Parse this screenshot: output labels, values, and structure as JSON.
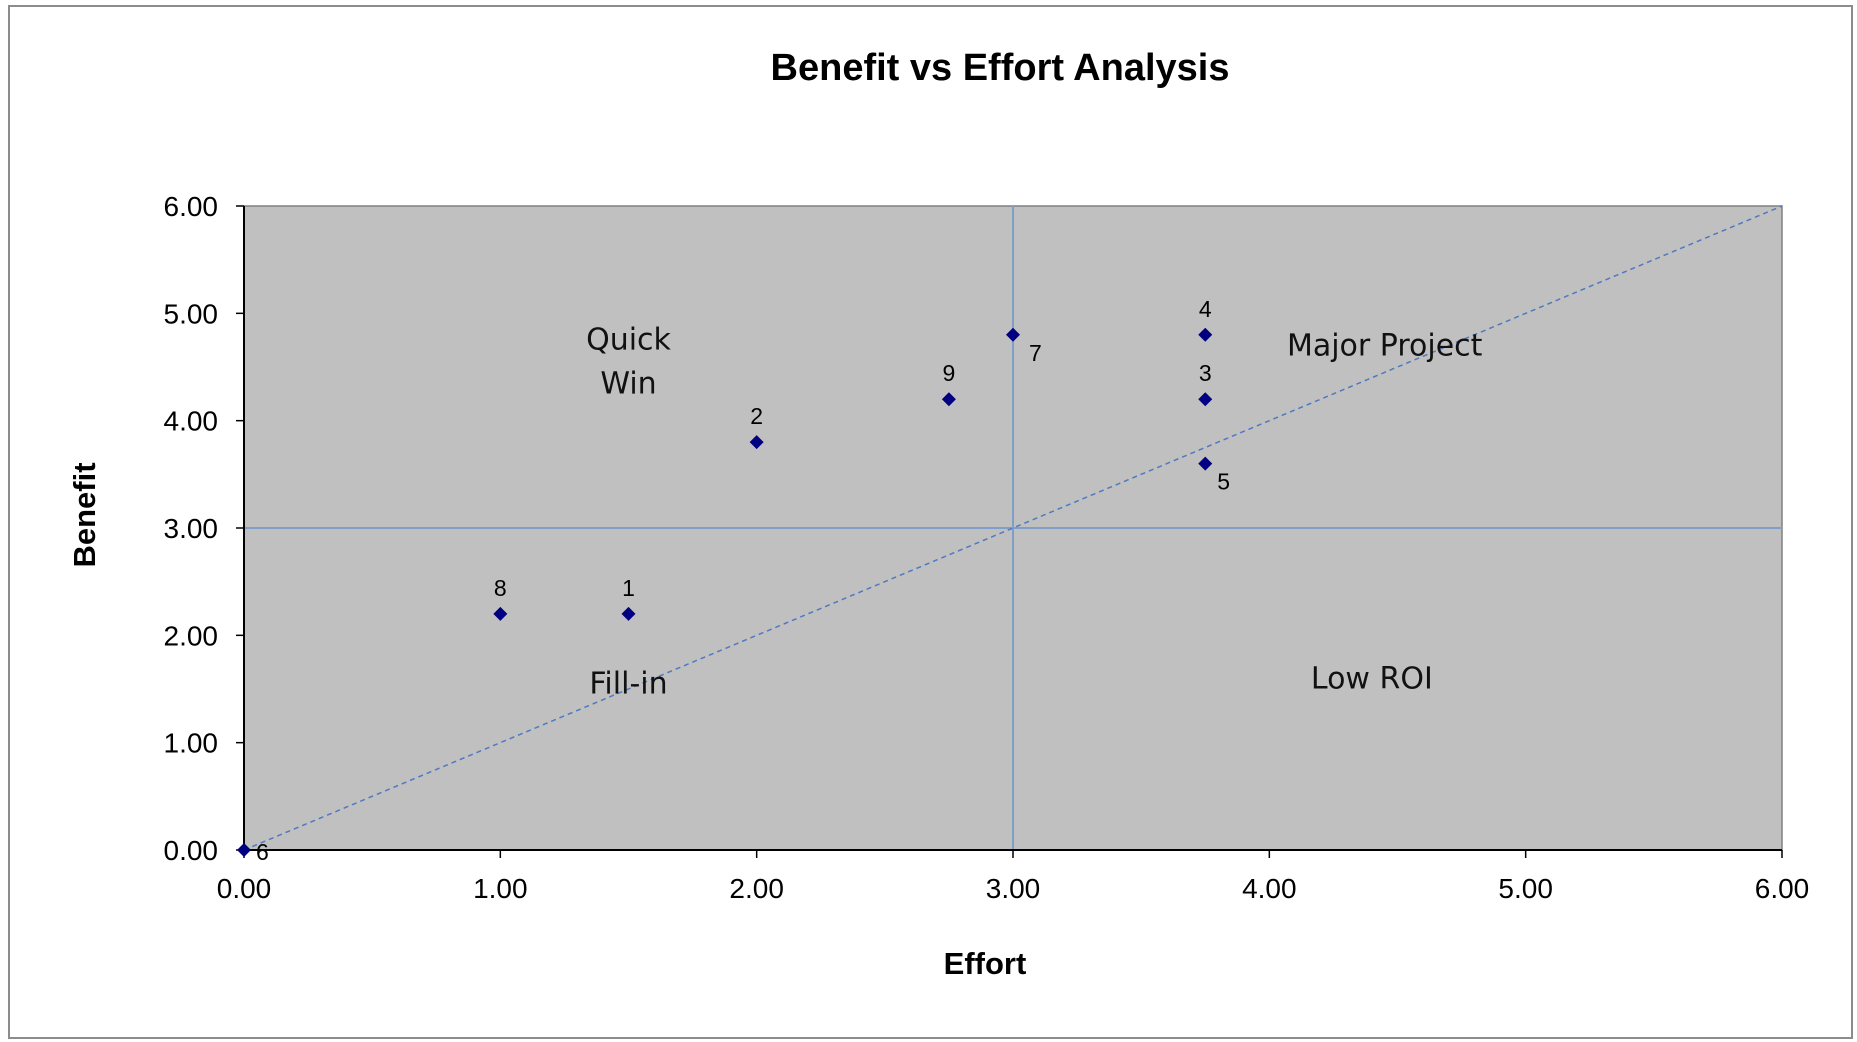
{
  "chart_data": {
    "type": "scatter",
    "title": "Benefit vs Effort Analysis",
    "xlabel": "Effort",
    "ylabel": "Benefit",
    "xlim": [
      0,
      6
    ],
    "ylim": [
      0,
      6
    ],
    "x_ticks": [
      "0.00",
      "1.00",
      "2.00",
      "3.00",
      "4.00",
      "5.00",
      "6.00"
    ],
    "y_ticks": [
      "0.00",
      "1.00",
      "2.00",
      "3.00",
      "4.00",
      "5.00",
      "6.00"
    ],
    "grid": false,
    "legend": "none",
    "divider_lines": {
      "x": 3,
      "y": 3
    },
    "diagonal": {
      "from": [
        0,
        0
      ],
      "to": [
        6,
        6
      ],
      "style": "dashed"
    },
    "points": [
      {
        "label": "1",
        "x": 1.5,
        "y": 2.2
      },
      {
        "label": "2",
        "x": 2.0,
        "y": 3.8
      },
      {
        "label": "3",
        "x": 3.75,
        "y": 4.2
      },
      {
        "label": "4",
        "x": 3.75,
        "y": 4.8
      },
      {
        "label": "5",
        "x": 3.75,
        "y": 3.6
      },
      {
        "label": "6",
        "x": 0.0,
        "y": 0.0
      },
      {
        "label": "7",
        "x": 3.0,
        "y": 4.8
      },
      {
        "label": "8",
        "x": 1.0,
        "y": 2.2
      },
      {
        "label": "9",
        "x": 2.75,
        "y": 4.2
      }
    ],
    "quadrant_labels": [
      {
        "lines": [
          "Quick",
          "Win"
        ],
        "x": 1.5,
        "y": 4.55
      },
      {
        "lines": [
          "Major Project"
        ],
        "x": 4.45,
        "y": 4.7
      },
      {
        "lines": [
          "Fill-in"
        ],
        "x": 1.5,
        "y": 1.55
      },
      {
        "lines": [
          "Low ROI"
        ],
        "x": 4.4,
        "y": 1.6
      }
    ],
    "colors": {
      "plot_background": "#c0c0c0",
      "marker": "#000080",
      "divider": "#7f9fc8",
      "diagonal": "#4f79c0",
      "axis": "#000000"
    }
  }
}
